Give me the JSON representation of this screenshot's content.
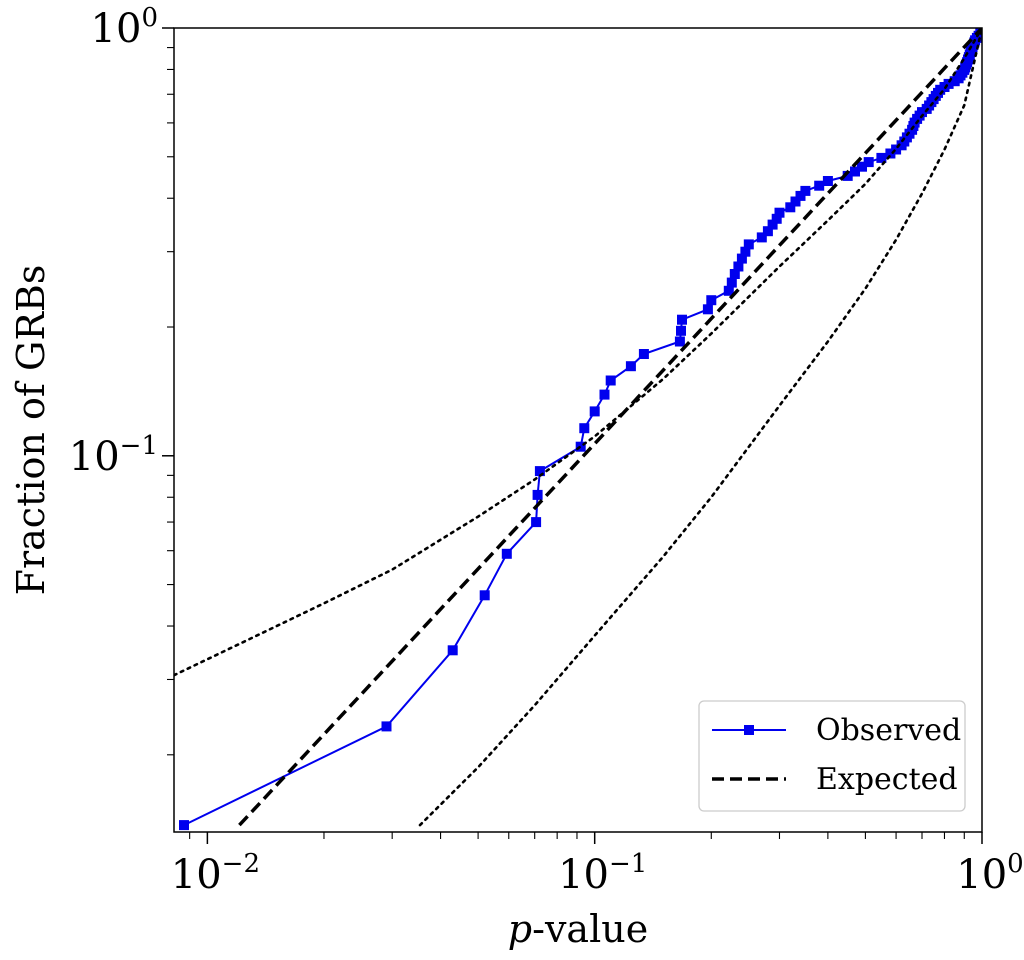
{
  "chart_data": {
    "type": "line",
    "xscale": "log",
    "yscale": "log",
    "xlim": [
      0.0082,
      1.0
    ],
    "ylim": [
      0.0132,
      1.0
    ],
    "xlabel_var": "p",
    "xlabel_rest": "-value",
    "ylabel": "Fraction of GRBs",
    "x_ticks": [
      {
        "value": 0.01,
        "base": "10",
        "exp": "−2"
      },
      {
        "value": 0.1,
        "base": "10",
        "exp": "−1"
      },
      {
        "value": 1.0,
        "base": "10",
        "exp": "0"
      }
    ],
    "y_ticks": [
      {
        "value": 0.1,
        "base": "10",
        "exp": "−1"
      },
      {
        "value": 1.0,
        "base": "10",
        "exp": "0"
      }
    ],
    "legend": {
      "placement": "lower right",
      "entries": [
        "Observed",
        "Expected"
      ]
    },
    "series": [
      {
        "name": "Observed",
        "color": "#0000ee",
        "marker": "square",
        "style": "solid",
        "points": [
          [
            0.0087,
            0.0137
          ],
          [
            0.029,
            0.0233
          ],
          [
            0.043,
            0.0351
          ],
          [
            0.052,
            0.0472
          ],
          [
            0.0593,
            0.059
          ],
          [
            0.0706,
            0.07
          ],
          [
            0.0712,
            0.081
          ],
          [
            0.0722,
            0.0921
          ],
          [
            0.092,
            0.105
          ],
          [
            0.094,
            0.116
          ],
          [
            0.1,
            0.127
          ],
          [
            0.106,
            0.139
          ],
          [
            0.11,
            0.15
          ],
          [
            0.124,
            0.162
          ],
          [
            0.134,
            0.173
          ],
          [
            0.166,
            0.185
          ],
          [
            0.167,
            0.196
          ],
          [
            0.168,
            0.208
          ],
          [
            0.196,
            0.22
          ],
          [
            0.2,
            0.231
          ],
          [
            0.222,
            0.243
          ],
          [
            0.226,
            0.254
          ],
          [
            0.23,
            0.266
          ],
          [
            0.235,
            0.277
          ],
          [
            0.24,
            0.289
          ],
          [
            0.245,
            0.3
          ],
          [
            0.25,
            0.312
          ],
          [
            0.27,
            0.324
          ],
          [
            0.28,
            0.335
          ],
          [
            0.288,
            0.347
          ],
          [
            0.295,
            0.358
          ],
          [
            0.3,
            0.37
          ],
          [
            0.32,
            0.381
          ],
          [
            0.33,
            0.393
          ],
          [
            0.34,
            0.405
          ],
          [
            0.35,
            0.416
          ],
          [
            0.38,
            0.428
          ],
          [
            0.4,
            0.439
          ],
          [
            0.45,
            0.451
          ],
          [
            0.47,
            0.462
          ],
          [
            0.49,
            0.474
          ],
          [
            0.51,
            0.486
          ],
          [
            0.55,
            0.497
          ],
          [
            0.58,
            0.509
          ],
          [
            0.6,
            0.52
          ],
          [
            0.62,
            0.532
          ],
          [
            0.63,
            0.543
          ],
          [
            0.64,
            0.555
          ],
          [
            0.65,
            0.566
          ],
          [
            0.66,
            0.578
          ],
          [
            0.665,
            0.59
          ],
          [
            0.67,
            0.601
          ],
          [
            0.68,
            0.613
          ],
          [
            0.69,
            0.624
          ],
          [
            0.7,
            0.636
          ],
          [
            0.72,
            0.647
          ],
          [
            0.73,
            0.659
          ],
          [
            0.74,
            0.671
          ],
          [
            0.75,
            0.682
          ],
          [
            0.76,
            0.694
          ],
          [
            0.77,
            0.705
          ],
          [
            0.78,
            0.717
          ],
          [
            0.8,
            0.728
          ],
          [
            0.82,
            0.74
          ],
          [
            0.85,
            0.751
          ],
          [
            0.87,
            0.763
          ],
          [
            0.88,
            0.775
          ],
          [
            0.89,
            0.786
          ],
          [
            0.9,
            0.798
          ],
          [
            0.905,
            0.809
          ],
          [
            0.91,
            0.821
          ],
          [
            0.915,
            0.832
          ],
          [
            0.92,
            0.844
          ],
          [
            0.925,
            0.855
          ],
          [
            0.93,
            0.867
          ],
          [
            0.935,
            0.879
          ],
          [
            0.94,
            0.89
          ],
          [
            0.945,
            0.902
          ],
          [
            0.95,
            0.913
          ],
          [
            0.955,
            0.925
          ],
          [
            0.96,
            0.936
          ],
          [
            0.97,
            0.948
          ],
          [
            0.98,
            0.959
          ],
          [
            0.99,
            0.971
          ],
          [
            0.995,
            0.983
          ],
          [
            1.0,
            0.994
          ]
        ]
      },
      {
        "name": "Expected",
        "color": "#000000",
        "style": "dashed",
        "points": [
          [
            0.0121,
            0.0137
          ],
          [
            1.0,
            1.0
          ]
        ]
      },
      {
        "name": "",
        "color": "#000000",
        "style": "dotted",
        "points": [
          [
            0.0082,
            0.0307
          ],
          [
            0.012,
            0.0362
          ],
          [
            0.02,
            0.0452
          ],
          [
            0.03,
            0.0542
          ],
          [
            0.05,
            0.0721
          ],
          [
            0.07,
            0.088
          ],
          [
            0.1,
            0.111
          ],
          [
            0.15,
            0.151
          ],
          [
            0.2,
            0.193
          ],
          [
            0.3,
            0.277
          ],
          [
            0.4,
            0.355
          ],
          [
            0.5,
            0.432
          ],
          [
            0.6,
            0.522
          ],
          [
            0.7,
            0.623
          ],
          [
            0.8,
            0.72
          ],
          [
            0.9,
            0.85
          ],
          [
            1.0,
            1.0
          ]
        ]
      },
      {
        "name": "",
        "color": "#000000",
        "style": "dotted",
        "points": [
          [
            0.0354,
            0.0137
          ],
          [
            0.05,
            0.0187
          ],
          [
            0.07,
            0.0261
          ],
          [
            0.1,
            0.038
          ],
          [
            0.15,
            0.058
          ],
          [
            0.2,
            0.08
          ],
          [
            0.3,
            0.131
          ],
          [
            0.4,
            0.185
          ],
          [
            0.5,
            0.246
          ],
          [
            0.6,
            0.32
          ],
          [
            0.7,
            0.41
          ],
          [
            0.8,
            0.52
          ],
          [
            0.9,
            0.66
          ],
          [
            1.0,
            1.0
          ]
        ]
      }
    ]
  }
}
